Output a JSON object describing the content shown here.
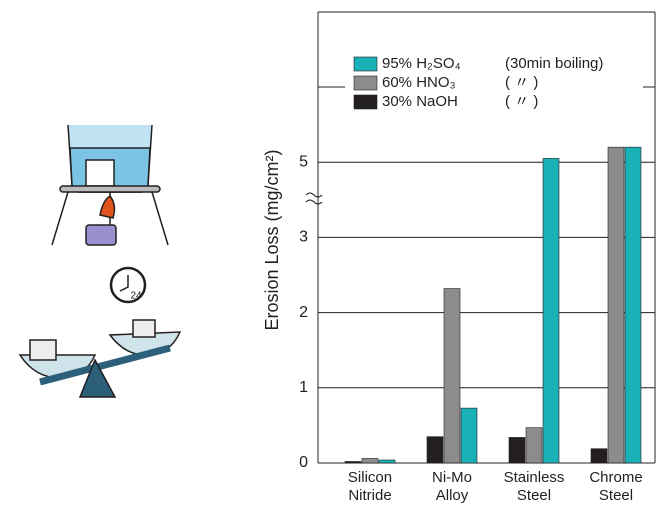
{
  "chart_data": {
    "type": "bar",
    "y_label": "Erosion Loss (mg/cm²)",
    "categories": [
      "Silicon Nitride",
      "Ni-Mo Alloy",
      "Stainless Steel",
      "Chrome Steel"
    ],
    "series": [
      {
        "name": "30% NaOH",
        "note": "(  〃  )",
        "color": "#231f20",
        "values": [
          0.02,
          0.35,
          0.34,
          0.19
        ]
      },
      {
        "name": "60% HNO₃",
        "note": "(  〃  )",
        "color": "#8c8c8c",
        "values": [
          0.06,
          2.32,
          0.47,
          5.2
        ]
      },
      {
        "name": "95% H₂SO₄",
        "note": "(30min boiling)",
        "color": "#1ab0b8",
        "values": [
          0.04,
          0.73,
          5.05,
          5.2
        ]
      }
    ],
    "ylim": [
      0,
      7
    ],
    "yticks": [
      0,
      1,
      2,
      3,
      5
    ],
    "grid_lines": [
      1,
      2,
      3,
      5,
      6
    ],
    "axis_break": [
      3,
      4
    ],
    "legend": "top"
  },
  "illustration": {
    "clock_label": "24"
  }
}
